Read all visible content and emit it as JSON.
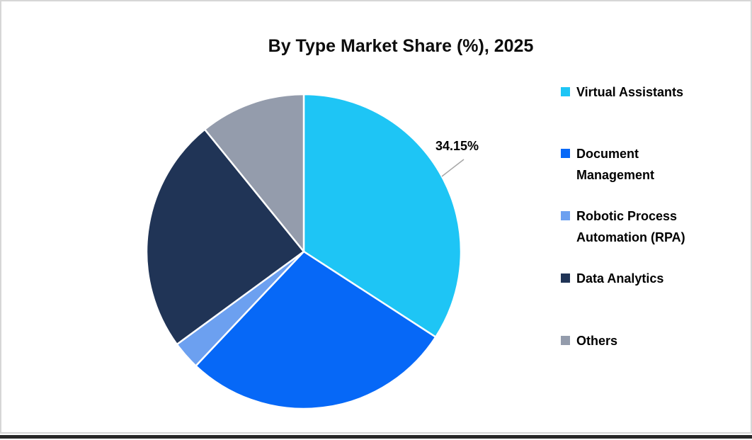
{
  "chart_data": {
    "type": "pie",
    "title": "By Type Market Share (%), 2025",
    "categories": [
      "Virtual Assistants",
      "Document Management",
      "Robotic Process Automation (RPA)",
      "Data Analytics",
      "Others"
    ],
    "values": [
      34.15,
      27.9,
      2.9,
      24.2,
      10.85
    ],
    "colors": [
      "#1EC5F5",
      "#0668F7",
      "#6CA0F0",
      "#203456",
      "#949CAC"
    ],
    "start_angle_deg": 0,
    "direction": "clockwise",
    "legend_position": "right",
    "data_labels": [
      {
        "slice": "Virtual Assistants",
        "text": "34.15%"
      }
    ]
  },
  "styles": {
    "slice_gap_color": "#FFFFFF",
    "leader_line_color": "#A6A6A6",
    "canvas_border_color": "#D6D6D6",
    "bottom_bar_color": "#282828",
    "title_color": "#0D0D0D",
    "label_text_color": "#000000"
  }
}
